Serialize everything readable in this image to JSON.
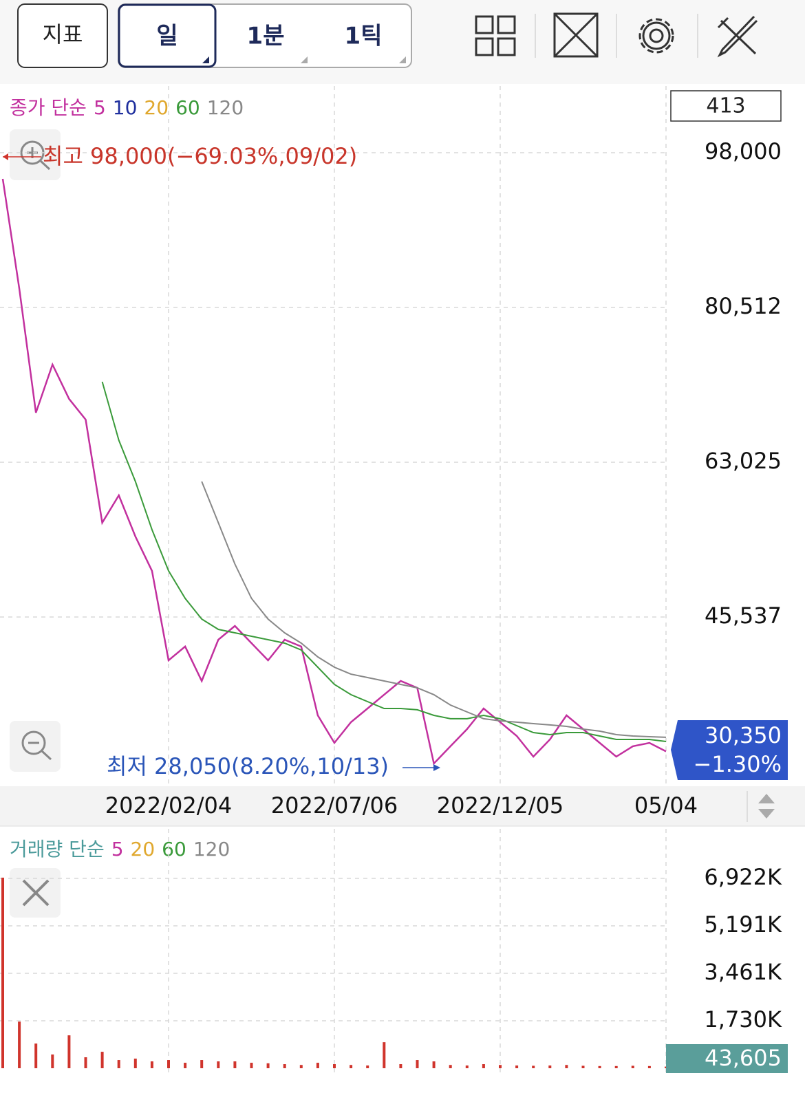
{
  "toolbar": {
    "buttons": [
      "지표",
      "일",
      "1분",
      "1틱"
    ]
  },
  "chart_data": [
    {
      "type": "line",
      "legend_title": "종가 단순",
      "legend": [
        {
          "label": "5",
          "color": "#c2309e"
        },
        {
          "label": "10",
          "color": "#1f2f9e"
        },
        {
          "label": "20",
          "color": "#e0a82e"
        },
        {
          "label": "60",
          "color": "#3a9a3a"
        },
        {
          "label": "120",
          "color": "#888888"
        }
      ],
      "counter": "413",
      "high_label": "최고 98,000(−69.03%,09/02)",
      "low_label": "최저 28,050(8.20%,10/13)",
      "current_price": "30,350",
      "change": "−1.30%",
      "categories": [
        null,
        null,
        null,
        null,
        null,
        null,
        null,
        null,
        null,
        null,
        "2022/02/04",
        null,
        null,
        null,
        null,
        null,
        null,
        null,
        null,
        null,
        "2022/07/06",
        null,
        null,
        null,
        null,
        null,
        null,
        null,
        null,
        null,
        "2022/12/05",
        null,
        null,
        null,
        null,
        null,
        null,
        null,
        null,
        null,
        "05/04"
      ],
      "series": [
        {
          "color": "#c2309e",
          "values": [
            95050,
            82610,
            68620,
            74060,
            70180,
            67840,
            56190,
            59290,
            54630,
            50750,
            40640,
            42200,
            38310,
            42970,
            44530,
            42580,
            40640,
            42970,
            42200,
            34420,
            31310,
            33650,
            35200,
            36760,
            38310,
            37530,
            28980,
            30930,
            32870,
            35200,
            33650,
            32090,
            29760,
            31700,
            34420,
            32870,
            31310,
            29760,
            30930,
            31310,
            30350
          ]
        },
        {
          "color": "#3a9a3a",
          "values": [
            null,
            null,
            null,
            null,
            null,
            null,
            72120,
            65510,
            60850,
            55410,
            50750,
            47640,
            45300,
            44140,
            43750,
            43360,
            42970,
            42580,
            41810,
            39860,
            37920,
            36760,
            35980,
            35200,
            35200,
            35050,
            34420,
            34040,
            34040,
            34420,
            34040,
            33260,
            32480,
            32250,
            32480,
            32480,
            32090,
            31700,
            31700,
            31700,
            31470
          ]
        },
        {
          "color": "#888888",
          "values": [
            null,
            null,
            null,
            null,
            null,
            null,
            null,
            null,
            null,
            null,
            null,
            null,
            60850,
            56190,
            51520,
            47640,
            45300,
            43750,
            42580,
            41030,
            39860,
            39080,
            38700,
            38310,
            37920,
            37530,
            36760,
            35590,
            34810,
            34040,
            33800,
            33650,
            33490,
            33340,
            33180,
            32870,
            32640,
            32250,
            32090,
            32010,
            31940
          ]
        }
      ],
      "ylim": [
        26650,
        105540
      ],
      "yticks": [
        {
          "value": 98000,
          "label": "98,000"
        },
        {
          "value": 80512,
          "label": "80,512"
        },
        {
          "value": 63025,
          "label": "63,025"
        },
        {
          "value": 45537,
          "label": "45,537"
        }
      ],
      "grid": true
    },
    {
      "type": "bar",
      "legend_title": "거래량 단순",
      "legend": [
        {
          "label": "5",
          "color": "#c2309e"
        },
        {
          "label": "20",
          "color": "#e0a82e"
        },
        {
          "label": "60",
          "color": "#3a9a3a"
        },
        {
          "label": "120",
          "color": "#888888"
        }
      ],
      "current_volume": "43,605",
      "color": "#d0342c",
      "values": [
        6950,
        1700,
        900,
        500,
        1200,
        400,
        600,
        300,
        350,
        250,
        300,
        200,
        300,
        250,
        250,
        200,
        180,
        150,
        120,
        200,
        150,
        120,
        100,
        950,
        150,
        300,
        250,
        120,
        100,
        150,
        120,
        100,
        90,
        100,
        120,
        90,
        80,
        80,
        90,
        80,
        60
      ],
      "ylim": [
        0,
        7224
      ],
      "yticks": [
        {
          "value": 6922,
          "label": "6,922K"
        },
        {
          "value": 5191,
          "label": "5,191K"
        },
        {
          "value": 3461,
          "label": "3,461K"
        },
        {
          "value": 1730,
          "label": "1,730K"
        }
      ],
      "grid": true
    }
  ]
}
